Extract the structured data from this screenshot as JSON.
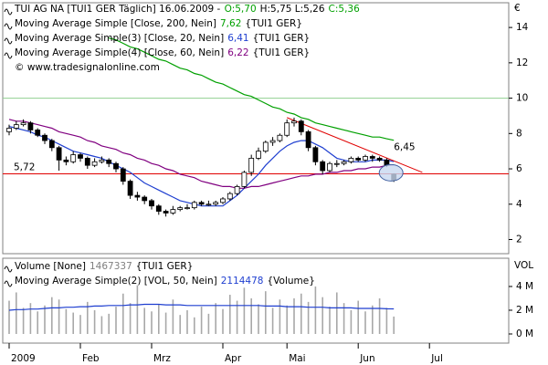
{
  "chart_data": {
    "type": "candlestick",
    "header": {
      "text": "TUI AG NA [TUI1 GER  Täglich] 16.06.2009 -",
      "o": "O:5,70",
      "hl": "H:5,75 L:5,26",
      "c": "C:5,36",
      "value_color": "#00a000"
    },
    "copyright": "© www.tradesignalonline.com",
    "unit": "€",
    "categories": [
      "2009",
      null,
      null,
      null,
      null,
      null,
      null,
      null,
      null,
      null,
      "Feb",
      null,
      null,
      null,
      null,
      null,
      null,
      null,
      null,
      null,
      "Mrz",
      null,
      null,
      null,
      null,
      null,
      null,
      null,
      null,
      null,
      "Apr",
      null,
      null,
      null,
      null,
      null,
      null,
      null,
      null,
      "Mai",
      null,
      null,
      null,
      null,
      null,
      null,
      null,
      null,
      null,
      "Jun",
      null,
      null,
      null,
      null,
      null,
      null,
      null,
      null,
      null,
      "Jul"
    ],
    "open": [
      8.1,
      8.3,
      8.5,
      8.6,
      8.2,
      7.9,
      7.6,
      7.2,
      6.5,
      6.4,
      6.8,
      6.6,
      6.2,
      6.4,
      6.5,
      6.3,
      6.0,
      5.3,
      4.5,
      4.4,
      4.2,
      3.9,
      3.6,
      3.5,
      3.7,
      3.8,
      3.8,
      4.1,
      4.0,
      4.0,
      4.1,
      4.3,
      4.6,
      5.0,
      5.8,
      6.6,
      7.0,
      7.5,
      7.6,
      7.9,
      8.6,
      8.7,
      8.1,
      7.2,
      6.4,
      5.9,
      6.3,
      6.3,
      6.4,
      6.6,
      6.5,
      6.7,
      6.6,
      6.5,
      5.7,
      null,
      null,
      null,
      null,
      null
    ],
    "high": [
      8.5,
      8.7,
      8.8,
      8.7,
      8.3,
      8.0,
      7.7,
      7.3,
      6.7,
      7.0,
      6.9,
      6.7,
      6.6,
      6.7,
      6.6,
      6.4,
      6.1,
      5.4,
      4.7,
      4.5,
      4.3,
      4.0,
      3.7,
      3.9,
      3.9,
      4.0,
      4.2,
      4.2,
      4.2,
      4.2,
      4.4,
      4.7,
      5.1,
      5.9,
      6.8,
      7.2,
      7.6,
      7.8,
      8.0,
      8.8,
      8.9,
      8.8,
      8.2,
      7.3,
      6.5,
      6.4,
      6.5,
      6.5,
      6.7,
      6.7,
      6.8,
      6.8,
      6.7,
      6.6,
      5.75,
      null,
      null,
      null,
      null,
      null
    ],
    "low": [
      7.9,
      8.2,
      8.4,
      8.0,
      7.8,
      7.4,
      7.0,
      5.9,
      6.2,
      6.3,
      6.4,
      6.0,
      6.1,
      6.3,
      6.1,
      5.8,
      5.1,
      4.3,
      4.2,
      4.0,
      3.7,
      3.4,
      3.3,
      3.4,
      3.6,
      3.7,
      3.7,
      3.9,
      3.9,
      3.9,
      4.0,
      4.2,
      4.5,
      4.9,
      5.6,
      6.5,
      6.9,
      7.3,
      7.5,
      7.8,
      8.4,
      7.9,
      7.0,
      6.2,
      5.7,
      5.8,
      6.1,
      6.2,
      6.3,
      6.4,
      6.4,
      6.4,
      6.4,
      6.1,
      5.26,
      null,
      null,
      null,
      null,
      null
    ],
    "close": [
      8.3,
      8.5,
      8.6,
      8.2,
      7.9,
      7.6,
      7.2,
      6.5,
      6.4,
      6.8,
      6.6,
      6.2,
      6.4,
      6.5,
      6.3,
      6.0,
      5.3,
      4.5,
      4.4,
      4.2,
      3.9,
      3.6,
      3.5,
      3.7,
      3.8,
      3.8,
      4.1,
      4.0,
      4.0,
      4.1,
      4.3,
      4.6,
      5.0,
      5.8,
      6.6,
      7.0,
      7.5,
      7.6,
      7.9,
      8.6,
      8.7,
      8.1,
      7.2,
      6.4,
      5.9,
      6.3,
      6.3,
      6.4,
      6.6,
      6.5,
      6.7,
      6.6,
      6.5,
      6.2,
      5.36,
      null,
      null,
      null,
      null,
      null
    ],
    "up_color": "#ffffff",
    "down_color": "#000000",
    "series": [
      {
        "name": "Moving Average Simple [Close, 200, Nein]",
        "last_label": "7,62",
        "suffix": "{TUI1 GER}",
        "color": "#00a000",
        "values": [
          null,
          null,
          null,
          null,
          null,
          null,
          null,
          null,
          null,
          null,
          null,
          null,
          null,
          null,
          13.4,
          13.3,
          13.1,
          12.9,
          12.8,
          12.6,
          12.4,
          12.2,
          12.1,
          11.9,
          11.7,
          11.6,
          11.4,
          11.3,
          11.1,
          10.9,
          10.8,
          10.6,
          10.4,
          10.2,
          10.1,
          9.9,
          9.7,
          9.5,
          9.4,
          9.2,
          9.1,
          8.9,
          8.8,
          8.6,
          8.5,
          8.4,
          8.3,
          8.2,
          8.1,
          8.0,
          7.9,
          7.8,
          7.8,
          7.7,
          7.62,
          null,
          null,
          null,
          null,
          null
        ]
      },
      {
        "name": "Moving Average Simple(3) [Close, 20, Nein]",
        "last_label": "6,41",
        "suffix": "{TUI1 GER}",
        "color": "#1f3fd0",
        "values": [
          8.4,
          8.3,
          8.2,
          8.1,
          7.9,
          7.8,
          7.6,
          7.4,
          7.2,
          7.0,
          6.9,
          6.8,
          6.7,
          6.6,
          6.4,
          6.2,
          6.0,
          5.8,
          5.5,
          5.2,
          5.0,
          4.8,
          4.6,
          4.4,
          4.2,
          4.1,
          4.0,
          3.9,
          3.9,
          3.9,
          3.9,
          4.2,
          4.5,
          4.9,
          5.3,
          5.7,
          6.2,
          6.6,
          7.0,
          7.3,
          7.5,
          7.6,
          7.6,
          7.4,
          7.2,
          6.9,
          6.6,
          6.5,
          6.4,
          6.4,
          6.4,
          6.5,
          6.5,
          6.5,
          6.41,
          null,
          null,
          null,
          null,
          null
        ]
      },
      {
        "name": "Moving Average Simple(4) [Close, 60, Nein]",
        "last_label": "6,22",
        "suffix": "{TUI1 GER}",
        "color": "#800080",
        "values": [
          8.8,
          8.7,
          8.7,
          8.6,
          8.5,
          8.4,
          8.3,
          8.1,
          8.0,
          7.9,
          7.8,
          7.6,
          7.5,
          7.3,
          7.2,
          7.1,
          6.9,
          6.8,
          6.6,
          6.5,
          6.3,
          6.2,
          6.0,
          5.9,
          5.7,
          5.6,
          5.5,
          5.3,
          5.2,
          5.1,
          5.0,
          5.0,
          4.9,
          4.9,
          5.0,
          5.0,
          5.1,
          5.2,
          5.3,
          5.4,
          5.5,
          5.6,
          5.6,
          5.7,
          5.7,
          5.8,
          5.8,
          5.9,
          5.9,
          6.0,
          6.0,
          6.1,
          6.1,
          6.2,
          6.22,
          null,
          null,
          null,
          null,
          null
        ]
      }
    ],
    "ylim": [
      1.2,
      15.4
    ],
    "yticks": [
      2,
      4,
      6,
      8,
      10,
      12,
      14
    ],
    "hlines": [
      {
        "value": 5.72,
        "label": "5,72",
        "color": "#e00000"
      },
      {
        "value": 10,
        "color": "#90d090"
      }
    ],
    "trendline": {
      "from_index": 39,
      "from": 8.9,
      "to_index": 58,
      "to": 5.8,
      "color": "#e00000"
    },
    "annotation": {
      "value": 6.45,
      "label": "6,45",
      "color": "#e00000"
    },
    "volume": {
      "type": "bar",
      "title": "Volume [None]",
      "last_label": "1467337",
      "suffix": "{TUI1 GER}",
      "unit": "VOL",
      "color": "#a8a8a8",
      "values": [
        2800000,
        3500000,
        2200000,
        2600000,
        1900000,
        2400000,
        3100000,
        2900000,
        2100000,
        1800000,
        1600000,
        2700000,
        2000000,
        1500000,
        1700000,
        2300000,
        3400000,
        2600000,
        4100000,
        2200000,
        1900000,
        2500000,
        1800000,
        2900000,
        1600000,
        2000000,
        1400000,
        2300000,
        1700000,
        2600000,
        2100000,
        3300000,
        2800000,
        3900000,
        3000000,
        2500000,
        3600000,
        2200000,
        2900000,
        2400000,
        3000000,
        3400000,
        2700000,
        4000000,
        3100000,
        2300000,
        3500000,
        2600000,
        2000000,
        2800000,
        1900000,
        2400000,
        3000000,
        2200000,
        1467337,
        null,
        null,
        null,
        null,
        null
      ],
      "series": [
        {
          "name": "Moving Average Simple(2) [VOL, 50, Nein]",
          "last_label": "2114478",
          "suffix": "{Volume}",
          "color": "#1f3fd0",
          "values": [
            2000000,
            2050000,
            2050000,
            2100000,
            2100000,
            2150000,
            2200000,
            2200000,
            2250000,
            2250000,
            2300000,
            2300000,
            2350000,
            2350000,
            2400000,
            2400000,
            2400000,
            2450000,
            2450000,
            2500000,
            2500000,
            2500000,
            2450000,
            2450000,
            2450000,
            2400000,
            2400000,
            2400000,
            2400000,
            2400000,
            2400000,
            2400000,
            2400000,
            2400000,
            2400000,
            2400000,
            2350000,
            2350000,
            2350000,
            2300000,
            2300000,
            2300000,
            2250000,
            2250000,
            2250000,
            2200000,
            2200000,
            2200000,
            2200000,
            2150000,
            2150000,
            2150000,
            2150000,
            2120000,
            2114478,
            null,
            null,
            null,
            null,
            null
          ]
        }
      ],
      "ylim": [
        -770000,
        6380000
      ],
      "yticks": [
        {
          "value": 0,
          "label": "0 M"
        },
        {
          "value": 2000000,
          "label": "2 M"
        },
        {
          "value": 4000000,
          "label": "4 M"
        }
      ]
    }
  }
}
